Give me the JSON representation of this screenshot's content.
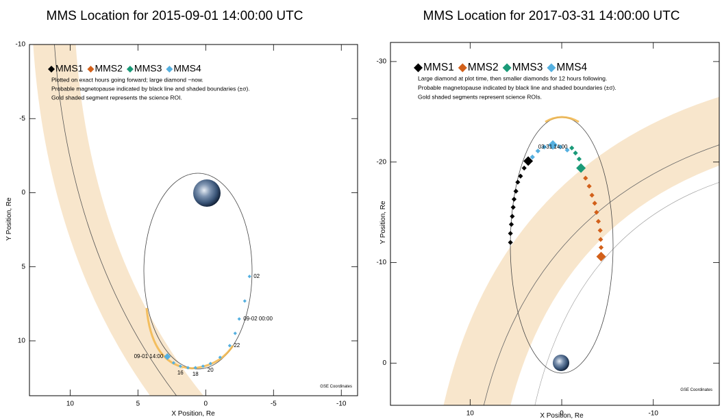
{
  "chart_data": [
    {
      "type": "scatter",
      "title": "MMS Location for 2015-09-01 14:00:00 UTC",
      "x_label": "X Position, Re",
      "y_label": "Y Position, Re",
      "xlim": [
        13,
        -11.2
      ],
      "ylim": [
        13.7,
        -10
      ],
      "xticks": [
        10,
        5,
        0,
        -5,
        -10
      ],
      "yticks": [
        -10,
        -5,
        0,
        5,
        10
      ],
      "notes": [
        "Plotted on exact hours going forward; large diamond ~now.",
        "Probable magnetopause indicated by black line and shaded boundaries (±σ).",
        "Gold shaded segment represents the science ROI."
      ],
      "coordinates_label": "GSE Coordinates",
      "series": [
        {
          "name": "MMS1",
          "color": "#000000"
        },
        {
          "name": "MMS2",
          "color": "#d2601a"
        },
        {
          "name": "MMS3",
          "color": "#1a9a78"
        },
        {
          "name": "MMS4",
          "color": "#55b0e0",
          "x": [
            2.83,
            2.37,
            1.87,
            1.31,
            0.76,
            0.2,
            -0.35,
            -1.06,
            -1.77,
            -2.17,
            -2.47,
            -2.88,
            -3.23
          ],
          "values": [
            11.06,
            11.48,
            11.71,
            11.81,
            11.81,
            11.71,
            11.53,
            11.11,
            10.32,
            9.49,
            8.52,
            7.31,
            5.65
          ],
          "point_labels": [
            "09-01 14:00",
            null,
            "16",
            null,
            "18",
            null,
            "20",
            null,
            "22",
            null,
            "09-02 00:00",
            null,
            "02"
          ]
        }
      ]
    },
    {
      "type": "scatter",
      "title": "MMS Location for 2017-03-31 14:00:00 UTC",
      "x_label": "X Position, Re",
      "y_label": "Y Position, Re",
      "xlim": [
        18.7,
        -17.2
      ],
      "ylim": [
        4.2,
        -31.9
      ],
      "xticks": [
        10,
        0,
        -10
      ],
      "yticks": [
        -30,
        -20,
        -10,
        0
      ],
      "notes": [
        "Large diamond at plot time, then smaller diamonds for 12 hours following.",
        "Probable magnetopause indicated by black line and shaded boundaries (±σ).",
        "Gold shaded segments represent science ROIs."
      ],
      "coordinates_label": "GSE Coordinates",
      "series": [
        {
          "name": "MMS1",
          "color": "#000000",
          "x": [
            3.66,
            4.1,
            4.5,
            4.8,
            5.0,
            5.2,
            5.3,
            5.4,
            5.5,
            5.6,
            5.6
          ],
          "values": [
            -20.1,
            -19.4,
            -18.6,
            -18.0,
            -17.1,
            -16.3,
            -15.5,
            -14.6,
            -13.8,
            -12.9,
            -12.0
          ]
        },
        {
          "name": "MMS2",
          "color": "#d2601a",
          "x": [
            -4.3,
            -2.2,
            -2.6,
            -3.0,
            -3.3,
            -3.6,
            -3.8,
            -4.0,
            -4.2,
            -4.25,
            -4.3
          ],
          "values": [
            -10.6,
            -19.3,
            -18.4,
            -17.6,
            -16.7,
            -15.9,
            -15.0,
            -14.1,
            -13.2,
            -12.3,
            -11.5
          ]
        },
        {
          "name": "MMS3",
          "color": "#1a9a78",
          "x": [
            -2.1,
            -1.1,
            -1.5,
            -1.9
          ],
          "values": [
            -19.4,
            -21.4,
            -20.9,
            -20.3
          ]
        },
        {
          "name": "MMS4",
          "color": "#55b0e0",
          "x": [
            0.97,
            1.9,
            2.6,
            3.2,
            0.15,
            -0.6
          ],
          "values": [
            -21.7,
            -21.5,
            -21.1,
            -20.5,
            -21.5,
            -21.2
          ],
          "point_labels": [
            "03-31 14:00",
            null,
            null,
            null,
            null,
            null
          ]
        }
      ]
    }
  ]
}
